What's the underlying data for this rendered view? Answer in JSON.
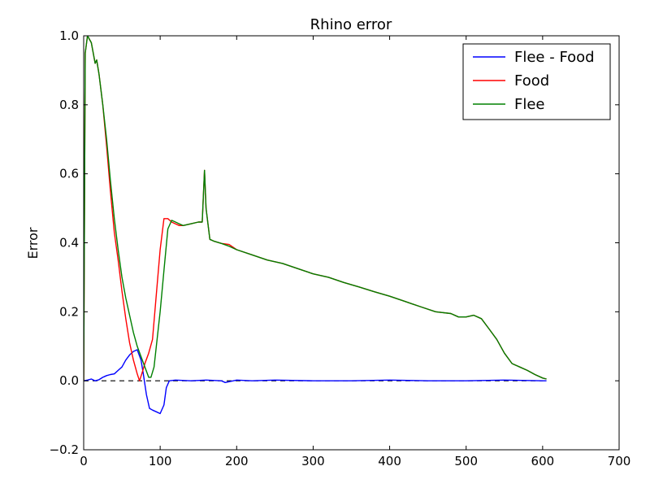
{
  "chart_data": {
    "type": "line",
    "title": "Rhino error",
    "xlabel": "",
    "ylabel": "Error",
    "xlim": [
      0,
      700
    ],
    "ylim": [
      -0.2,
      1.0
    ],
    "xticks": [
      "0",
      "100",
      "200",
      "300",
      "400",
      "500",
      "600",
      "700"
    ],
    "yticks": [
      "−0.2",
      "0.0",
      "0.2",
      "0.4",
      "0.6",
      "0.8",
      "1.0"
    ],
    "grid": false,
    "legend_position": "top-right",
    "reference_line": {
      "y": 0,
      "style": "dashed",
      "color": "#000000",
      "x_range": [
        0,
        600
      ]
    },
    "series": [
      {
        "name": "Flee - Food",
        "color": "#0000ff",
        "x": [
          0,
          5,
          10,
          15,
          20,
          25,
          30,
          35,
          40,
          45,
          50,
          55,
          60,
          65,
          70,
          75,
          78,
          82,
          86,
          90,
          95,
          100,
          105,
          108,
          112,
          120,
          140,
          160,
          180,
          185,
          200,
          220,
          250,
          300,
          350,
          400,
          450,
          500,
          550,
          600,
          605
        ],
        "y": [
          0.0,
          0.002,
          0.005,
          0.0,
          0.003,
          0.01,
          0.015,
          0.018,
          0.02,
          0.03,
          0.04,
          0.06,
          0.075,
          0.085,
          0.09,
          0.06,
          0.02,
          -0.04,
          -0.08,
          -0.085,
          -0.09,
          -0.095,
          -0.07,
          -0.02,
          0.0,
          0.002,
          0.0,
          0.002,
          0.0,
          -0.005,
          0.002,
          0.0,
          0.002,
          0.0,
          0.0,
          0.002,
          0.0,
          0.0,
          0.002,
          0.0,
          0.0
        ]
      },
      {
        "name": "Food",
        "color": "#ff0000",
        "x": [
          0,
          2,
          5,
          10,
          15,
          17,
          20,
          25,
          30,
          35,
          40,
          45,
          50,
          55,
          60,
          65,
          70,
          73,
          76,
          80,
          85,
          90,
          95,
          100,
          105,
          110,
          115,
          120,
          125,
          130,
          140,
          150,
          155,
          158,
          160,
          165,
          170,
          180,
          190,
          200,
          220,
          240,
          260,
          280,
          300,
          320,
          340,
          360,
          380,
          400,
          420,
          440,
          460,
          480,
          490,
          500,
          510,
          520,
          530,
          540,
          550,
          560,
          570,
          580,
          590,
          600,
          605
        ],
        "y": [
          0.0,
          0.95,
          1.0,
          0.98,
          0.92,
          0.93,
          0.89,
          0.8,
          0.68,
          0.55,
          0.43,
          0.35,
          0.26,
          0.18,
          0.11,
          0.06,
          0.02,
          0.0,
          0.02,
          0.05,
          0.08,
          0.12,
          0.25,
          0.38,
          0.47,
          0.47,
          0.46,
          0.455,
          0.45,
          0.45,
          0.455,
          0.46,
          0.46,
          0.61,
          0.5,
          0.41,
          0.405,
          0.398,
          0.395,
          0.38,
          0.365,
          0.35,
          0.34,
          0.325,
          0.31,
          0.3,
          0.285,
          0.272,
          0.258,
          0.245,
          0.23,
          0.215,
          0.2,
          0.195,
          0.185,
          0.185,
          0.19,
          0.18,
          0.15,
          0.12,
          0.08,
          0.05,
          0.04,
          0.03,
          0.018,
          0.008,
          0.005
        ]
      },
      {
        "name": "Flee",
        "color": "#008000",
        "x": [
          0,
          2,
          5,
          10,
          15,
          17,
          20,
          25,
          30,
          35,
          40,
          45,
          50,
          55,
          60,
          65,
          70,
          75,
          80,
          85,
          88,
          92,
          95,
          100,
          105,
          110,
          115,
          120,
          125,
          130,
          140,
          150,
          155,
          158,
          160,
          165,
          170,
          180,
          190,
          200,
          220,
          240,
          260,
          280,
          300,
          320,
          340,
          360,
          380,
          400,
          420,
          440,
          460,
          480,
          490,
          500,
          510,
          520,
          530,
          540,
          550,
          560,
          570,
          580,
          590,
          600,
          605
        ],
        "y": [
          0.0,
          0.95,
          1.0,
          0.98,
          0.92,
          0.93,
          0.89,
          0.8,
          0.7,
          0.58,
          0.47,
          0.38,
          0.3,
          0.24,
          0.19,
          0.14,
          0.1,
          0.07,
          0.04,
          0.01,
          0.01,
          0.04,
          0.1,
          0.2,
          0.32,
          0.44,
          0.465,
          0.46,
          0.455,
          0.45,
          0.455,
          0.46,
          0.46,
          0.61,
          0.5,
          0.41,
          0.405,
          0.398,
          0.39,
          0.38,
          0.365,
          0.35,
          0.34,
          0.325,
          0.31,
          0.3,
          0.285,
          0.272,
          0.258,
          0.245,
          0.23,
          0.215,
          0.2,
          0.195,
          0.185,
          0.185,
          0.19,
          0.18,
          0.15,
          0.12,
          0.08,
          0.05,
          0.04,
          0.03,
          0.018,
          0.008,
          0.005
        ]
      }
    ]
  }
}
